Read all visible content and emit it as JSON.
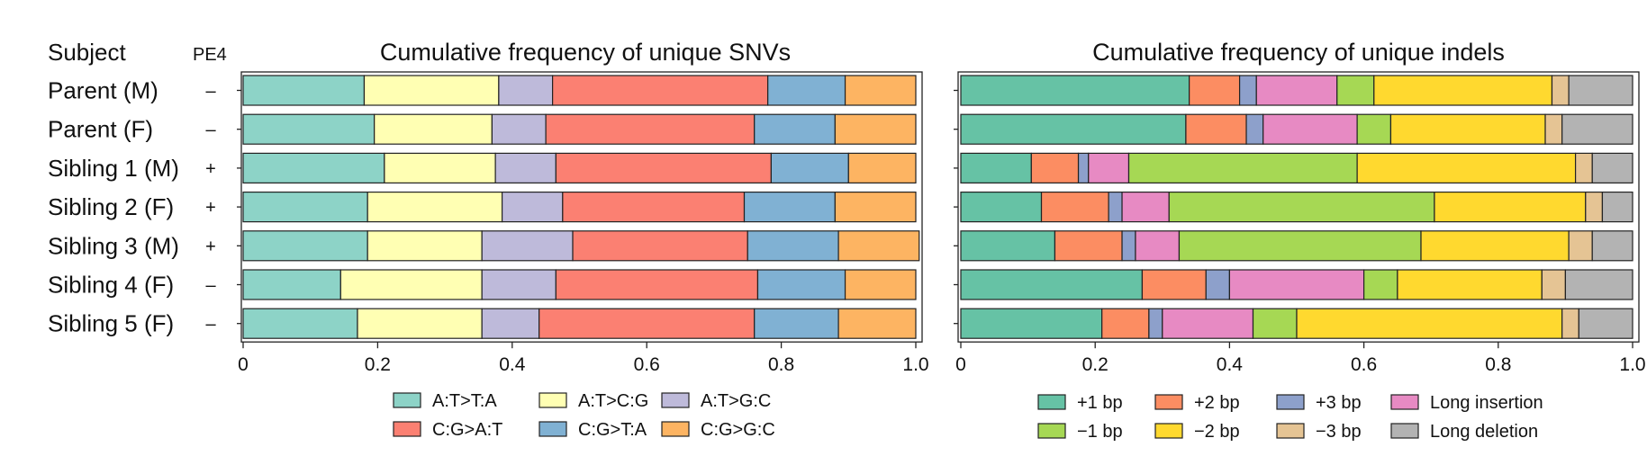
{
  "header": {
    "subject_label": "Subject",
    "pe4_label": "PE4"
  },
  "rows": [
    {
      "subject": "Parent (M)",
      "pe4": "–"
    },
    {
      "subject": "Parent (F)",
      "pe4": "–"
    },
    {
      "subject": "Sibling 1 (M)",
      "pe4": "+"
    },
    {
      "subject": "Sibling 2 (F)",
      "pe4": "+"
    },
    {
      "subject": "Sibling 3 (M)",
      "pe4": "+"
    },
    {
      "subject": "Sibling 4 (F)",
      "pe4": "–"
    },
    {
      "subject": "Sibling 5 (F)",
      "pe4": "–"
    }
  ],
  "chart_data": [
    {
      "type": "bar",
      "orientation": "horizontal-stacked",
      "title": "Cumulative frequency of unique SNVs",
      "categories": [
        "Parent (M)",
        "Parent (F)",
        "Sibling 1 (M)",
        "Sibling 2 (F)",
        "Sibling 3 (M)",
        "Sibling 4 (F)",
        "Sibling 5 (F)"
      ],
      "xlim": [
        0,
        1.0
      ],
      "xticks": [
        "0",
        "0.2",
        "0.4",
        "0.6",
        "0.8",
        "1.0"
      ],
      "tick_values": [
        0,
        0.2,
        0.4,
        0.6,
        0.8,
        1.0
      ],
      "series": [
        {
          "name": "A:T>T:A",
          "color": "#8dd3c7",
          "values": [
            0.18,
            0.195,
            0.21,
            0.185,
            0.185,
            0.145,
            0.17
          ]
        },
        {
          "name": "A:T>C:G",
          "color": "#ffffb3",
          "values": [
            0.2,
            0.175,
            0.165,
            0.2,
            0.17,
            0.21,
            0.185
          ]
        },
        {
          "name": "A:T>G:C",
          "color": "#bebada",
          "values": [
            0.08,
            0.08,
            0.09,
            0.09,
            0.135,
            0.11,
            0.085
          ]
        },
        {
          "name": "C:G>A:T",
          "color": "#fb8072",
          "values": [
            0.32,
            0.31,
            0.32,
            0.27,
            0.26,
            0.3,
            0.32
          ]
        },
        {
          "name": "C:G>T:A",
          "color": "#80b1d3",
          "values": [
            0.115,
            0.12,
            0.115,
            0.135,
            0.135,
            0.13,
            0.125
          ]
        },
        {
          "name": "C:G>G:C",
          "color": "#fdb462",
          "values": [
            0.105,
            0.12,
            0.1,
            0.12,
            0.12,
            0.105,
            0.115
          ]
        }
      ]
    },
    {
      "type": "bar",
      "orientation": "horizontal-stacked",
      "title": "Cumulative frequency of unique indels",
      "categories": [
        "Parent (M)",
        "Parent (F)",
        "Sibling 1 (M)",
        "Sibling 2 (F)",
        "Sibling 3 (M)",
        "Sibling 4 (F)",
        "Sibling 5 (F)"
      ],
      "xlim": [
        0,
        1.0
      ],
      "xticks": [
        "0",
        "0.2",
        "0.4",
        "0.6",
        "0.8",
        "1.0"
      ],
      "tick_values": [
        0,
        0.2,
        0.4,
        0.6,
        0.8,
        1.0
      ],
      "series": [
        {
          "name": "+1 bp",
          "color": "#66c2a5",
          "values": [
            0.34,
            0.335,
            0.105,
            0.12,
            0.14,
            0.27,
            0.21
          ]
        },
        {
          "name": "+2 bp",
          "color": "#fc8d62",
          "values": [
            0.075,
            0.09,
            0.07,
            0.1,
            0.1,
            0.095,
            0.07
          ]
        },
        {
          "name": "+3 bp",
          "color": "#8da0cb",
          "values": [
            0.025,
            0.025,
            0.015,
            0.02,
            0.02,
            0.035,
            0.02
          ]
        },
        {
          "name": "Long insertion",
          "color": "#e78ac3",
          "values": [
            0.12,
            0.14,
            0.06,
            0.07,
            0.065,
            0.2,
            0.135
          ]
        },
        {
          "name": "−1 bp",
          "color": "#a6d854",
          "values": [
            0.055,
            0.05,
            0.34,
            0.395,
            0.36,
            0.05,
            0.065
          ]
        },
        {
          "name": "−2 bp",
          "color": "#ffd92f",
          "values": [
            0.265,
            0.23,
            0.325,
            0.225,
            0.22,
            0.215,
            0.395
          ]
        },
        {
          "name": "−3 bp",
          "color": "#e5c494",
          "values": [
            0.025,
            0.025,
            0.025,
            0.025,
            0.035,
            0.035,
            0.025
          ]
        },
        {
          "name": "Long deletion",
          "color": "#b3b3b3",
          "values": [
            0.095,
            0.105,
            0.06,
            0.045,
            0.06,
            0.1,
            0.08
          ]
        }
      ]
    }
  ]
}
